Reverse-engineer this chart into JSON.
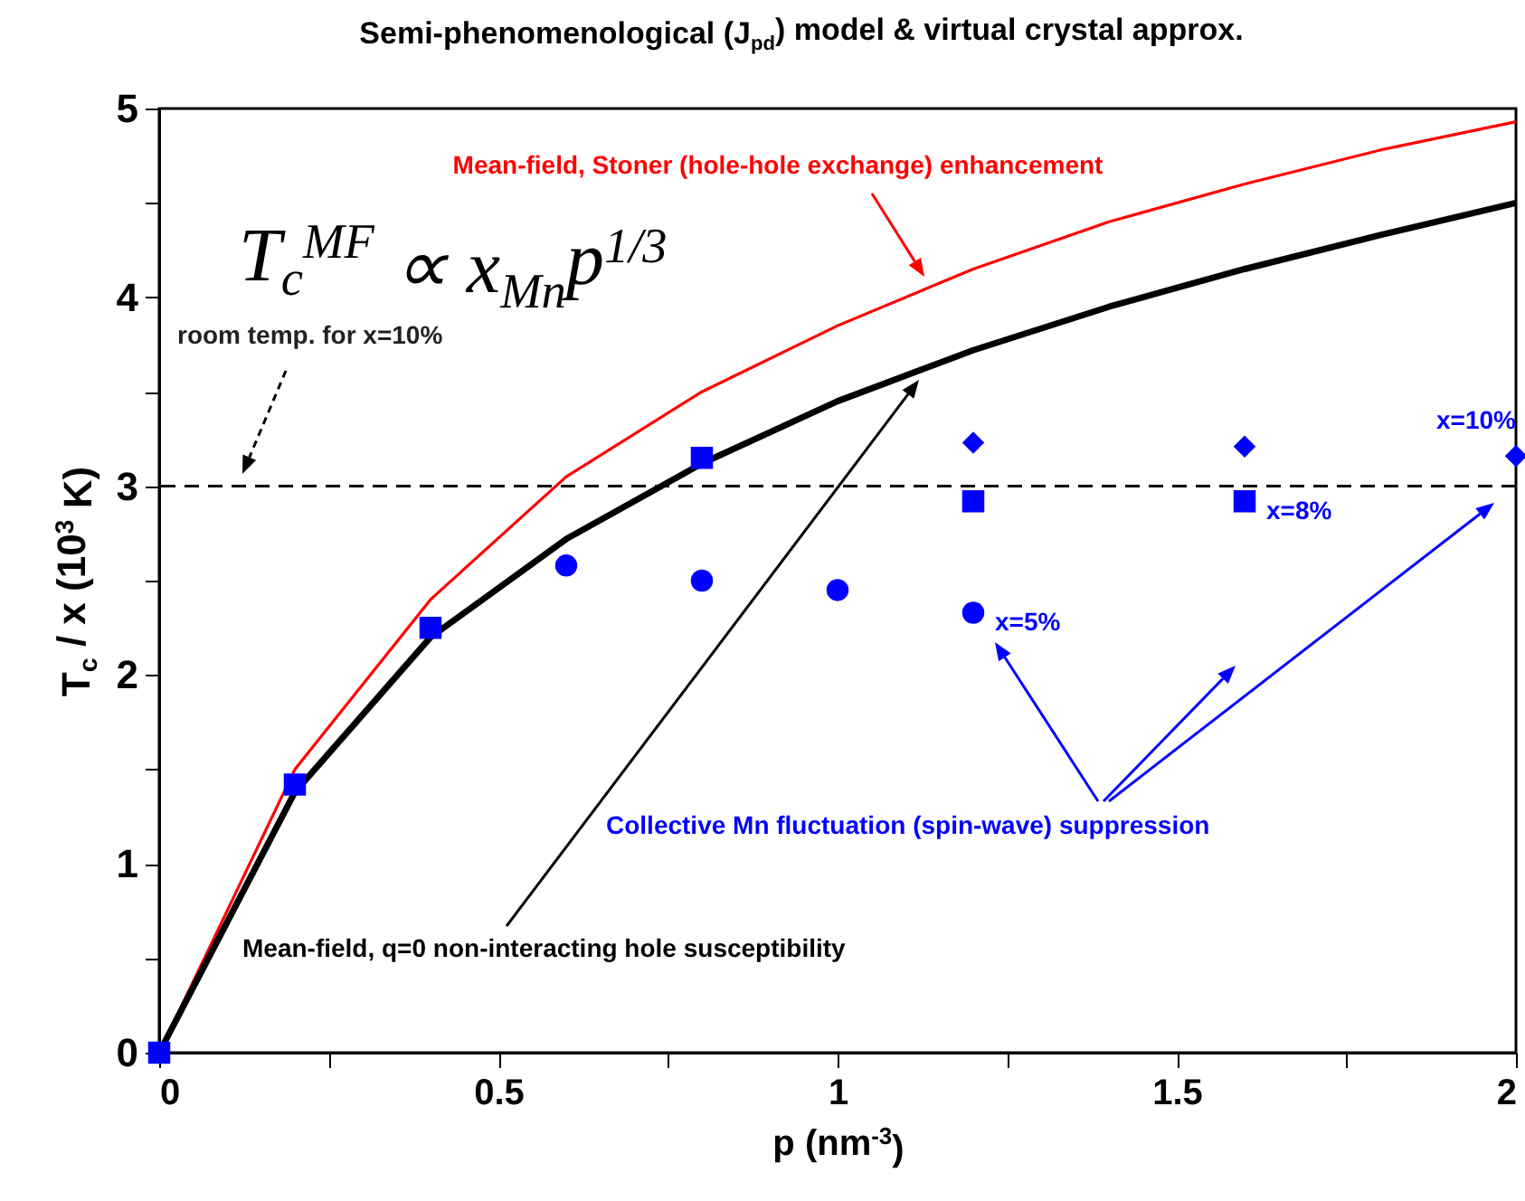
{
  "chart_data": {
    "type": "line",
    "title": "Semi-phenomenological (J$_{pd}$) model & virtual crystal approx.",
    "xlabel": "p (nm$^{-3}$)",
    "ylabel": "T$_{c}$ / x (10$^{3}$ K)",
    "xlim": [
      0,
      2
    ],
    "ylim": [
      0,
      5
    ],
    "xticks": [
      0,
      {
        "value": 0.25,
        "label": null
      },
      0.5,
      {
        "value": 0.75,
        "label": null
      },
      1,
      {
        "value": 1.25,
        "label": null
      },
      1.5,
      {
        "value": 1.75,
        "label": null
      },
      2
    ],
    "yticks": [
      0,
      {
        "value": 0.5,
        "label": null
      },
      1,
      {
        "value": 1.5,
        "label": null
      },
      2,
      {
        "value": 2.5,
        "label": null
      },
      3,
      {
        "value": 3.5,
        "label": null
      },
      4,
      {
        "value": 4.5,
        "label": null
      },
      5
    ],
    "series": [
      {
        "color": "#ff0000",
        "x": [
          0,
          0.2,
          0.4,
          0.6,
          0.8,
          1,
          1.2,
          1.4,
          1.6,
          1.8,
          2
        ],
        "values": [
          0,
          1.5,
          2.4,
          3.05,
          3.5,
          3.85,
          4.15,
          4.4,
          4.6,
          4.78,
          4.93
        ]
      },
      {
        "color": "#000000",
        "x": [
          0,
          0.2,
          0.4,
          0.6,
          0.8,
          1,
          1.2,
          1.4,
          1.6,
          1.8,
          2
        ],
        "values": [
          0,
          1.38,
          2.2,
          2.72,
          3.12,
          3.45,
          3.72,
          3.95,
          4.15,
          4.33,
          4.5
        ]
      },
      {
        "type": "scatter",
        "marker": "square",
        "color": "#0000ff",
        "x": [
          0,
          0.2,
          0.4,
          0.8,
          1.2,
          1.6
        ],
        "values": [
          0,
          1.42,
          2.25,
          3.15,
          2.92,
          2.92
        ]
      },
      {
        "type": "scatter",
        "marker": "circle",
        "color": "#0000ff",
        "x": [
          0.6,
          0.8,
          1,
          1.2
        ],
        "values": [
          2.58,
          2.5,
          2.45,
          2.33
        ]
      },
      {
        "type": "scatter",
        "marker": "diamond",
        "color": "#0000ff",
        "x": [
          1.2,
          1.6,
          2
        ],
        "values": [
          3.23,
          3.21,
          3.16
        ]
      }
    ],
    "ref_lines": [
      {
        "axis": "y",
        "value": 3,
        "color": "#000000",
        "line_style": "dashed"
      }
    ],
    "annotations": [
      "Mean-field, Stoner (hole-hole exchange) enhancement",
      "T$_{c}$$^{MF}$ ∝ x$_{Mn}$p$^{1/3}$",
      "room temp. for x=10%",
      "Mean-field, q=0 non-interacting hole susceptibility",
      "Collective Mn fluctuation (spin-wave) suppression",
      {
        "text": "x=5%",
        "x": 1.2,
        "y": 2.33
      },
      {
        "text": "x=8%",
        "x": 1.6,
        "y": 2.92
      },
      {
        "text": "x=10%",
        "x": 2,
        "y": 3.16
      }
    ]
  }
}
